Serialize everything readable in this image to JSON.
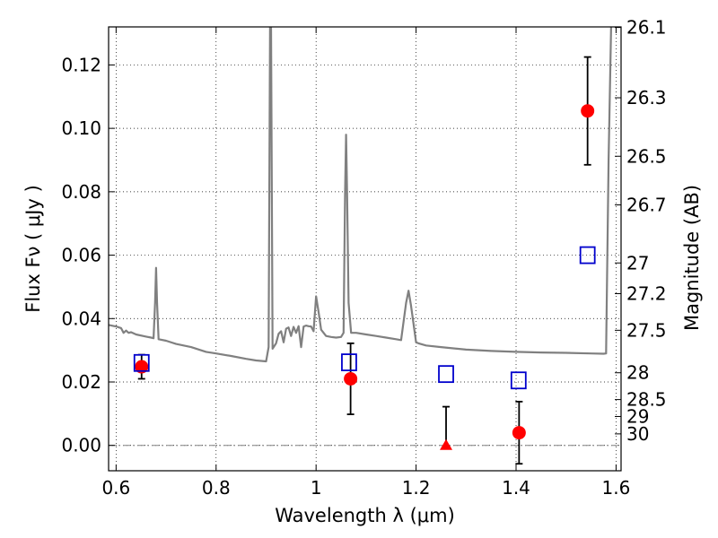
{
  "chart_data": {
    "type": "scatter",
    "xlabel": "Wavelength  λ (μm)",
    "ylabel": "Flux  Fν  ( μJy )",
    "y2label": "Magnitude (AB)",
    "xlim": [
      0.585,
      1.61
    ],
    "ylim": [
      -0.008,
      0.132
    ],
    "grid": true,
    "x_ticks": [
      {
        "value": 0.6,
        "label": "0.6"
      },
      {
        "value": 0.8,
        "label": "0.8"
      },
      {
        "value": 1.0,
        "label": "1"
      },
      {
        "value": 1.2,
        "label": "1.2"
      },
      {
        "value": 1.4,
        "label": "1.4"
      },
      {
        "value": 1.6,
        "label": "1.6"
      }
    ],
    "y_ticks": [
      {
        "value": 0.0,
        "label": "0.00"
      },
      {
        "value": 0.02,
        "label": "0.02"
      },
      {
        "value": 0.04,
        "label": "0.04"
      },
      {
        "value": 0.06,
        "label": "0.06"
      },
      {
        "value": 0.08,
        "label": "0.08"
      },
      {
        "value": 0.1,
        "label": "0.10"
      },
      {
        "value": 0.12,
        "label": "0.12"
      }
    ],
    "y2_ticks": [
      {
        "mag": 26.1,
        "label": "26.1"
      },
      {
        "mag": 26.3,
        "label": "26.3"
      },
      {
        "mag": 26.5,
        "label": "26.5"
      },
      {
        "mag": 26.7,
        "label": "26.7"
      },
      {
        "mag": 27.0,
        "label": "27"
      },
      {
        "mag": 27.2,
        "label": "27.2"
      },
      {
        "mag": 27.5,
        "label": "27.5"
      },
      {
        "mag": 28.0,
        "label": "28"
      },
      {
        "mag": 28.5,
        "label": "28.5"
      },
      {
        "mag": 29.0,
        "label": "29"
      },
      {
        "mag": 30.0,
        "label": "30"
      }
    ],
    "series": [
      {
        "kind": "line",
        "color": "#808080",
        "x": [
          0.585,
          0.6,
          0.61,
          0.615,
          0.62,
          0.625,
          0.63,
          0.64,
          0.66,
          0.67,
          0.675,
          0.678,
          0.68,
          0.682,
          0.685,
          0.7,
          0.72,
          0.75,
          0.78,
          0.8,
          0.83,
          0.86,
          0.88,
          0.9,
          0.905,
          0.908,
          0.91,
          0.913,
          0.92,
          0.925,
          0.93,
          0.935,
          0.94,
          0.945,
          0.95,
          0.955,
          0.96,
          0.965,
          0.97,
          0.975,
          0.98,
          0.985,
          0.99,
          0.995,
          1.0,
          1.005,
          1.01,
          1.02,
          1.03,
          1.04,
          1.05,
          1.055,
          1.058,
          1.06,
          1.062,
          1.065,
          1.07,
          1.075,
          1.08,
          1.1,
          1.12,
          1.14,
          1.16,
          1.17,
          1.18,
          1.185,
          1.19,
          1.2,
          1.205,
          1.22,
          1.25,
          1.3,
          1.35,
          1.4,
          1.45,
          1.5,
          1.55,
          1.575,
          1.58,
          1.585,
          1.59
        ],
        "y": [
          0.038,
          0.0375,
          0.037,
          0.0355,
          0.0362,
          0.0355,
          0.0357,
          0.035,
          0.0343,
          0.034,
          0.0338,
          0.045,
          0.056,
          0.045,
          0.0335,
          0.033,
          0.032,
          0.031,
          0.0295,
          0.029,
          0.0282,
          0.0273,
          0.0268,
          0.0265,
          0.031,
          0.132,
          0.132,
          0.0305,
          0.0322,
          0.0352,
          0.036,
          0.0325,
          0.0368,
          0.0372,
          0.0345,
          0.0374,
          0.0355,
          0.0376,
          0.031,
          0.0375,
          0.0378,
          0.0376,
          0.0375,
          0.036,
          0.047,
          0.042,
          0.0365,
          0.0345,
          0.0342,
          0.034,
          0.0342,
          0.0355,
          0.08,
          0.098,
          0.08,
          0.045,
          0.0355,
          0.0355,
          0.0355,
          0.035,
          0.0345,
          0.034,
          0.0335,
          0.0332,
          0.045,
          0.0488,
          0.044,
          0.0325,
          0.0322,
          0.0315,
          0.031,
          0.0302,
          0.0298,
          0.0295,
          0.0293,
          0.0292,
          0.029,
          0.0289,
          0.029,
          0.09,
          0.132
        ]
      },
      {
        "kind": "markers",
        "marker": "circle",
        "color": "#ff0000",
        "points": [
          {
            "x": 0.651,
            "y": 0.0248,
            "err_lo": 0.0038,
            "err_hi": 0.0038
          },
          {
            "x": 1.069,
            "y": 0.021,
            "err_lo": 0.0112,
            "err_hi": 0.0112
          },
          {
            "x": 1.406,
            "y": 0.004,
            "err_lo": 0.0098,
            "err_hi": 0.0098
          },
          {
            "x": 1.543,
            "y": 0.1055,
            "err_lo": 0.017,
            "err_hi": 0.017
          }
        ]
      },
      {
        "kind": "markers",
        "marker": "triangle",
        "color": "#ff0000",
        "points": [
          {
            "x": 1.26,
            "y": 0.0,
            "err_lo": 0.0,
            "err_hi": 0.0122
          }
        ]
      },
      {
        "kind": "markers",
        "marker": "open-square",
        "color": "#0000cc",
        "points": [
          {
            "x": 0.651,
            "y": 0.026
          },
          {
            "x": 1.066,
            "y": 0.0262
          },
          {
            "x": 1.26,
            "y": 0.0225
          },
          {
            "x": 1.405,
            "y": 0.0205
          },
          {
            "x": 1.543,
            "y": 0.06
          }
        ]
      }
    ],
    "reference_line": {
      "y": 0.0,
      "style": "dash-dot",
      "color": "#808080"
    }
  }
}
